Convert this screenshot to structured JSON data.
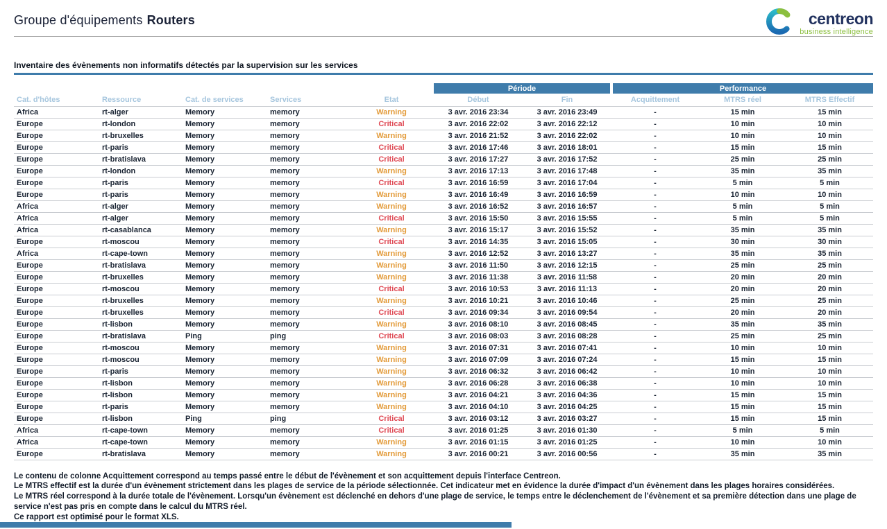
{
  "header": {
    "title_prefix": "Groupe d'équipements",
    "title_name": "Routers",
    "logo": {
      "brand": "centreon",
      "tagline": "business intelligence"
    }
  },
  "report": {
    "section_title": "Inventaire des évènements non informatifs détectés par la supervision sur les services",
    "table": {
      "group_headers": [
        {
          "label": "Période",
          "span": 2
        },
        {
          "label": "Performance",
          "span": 3
        }
      ],
      "columns": [
        "Cat. d'hôtes",
        "Ressource",
        "Cat. de services",
        "Services",
        "Etat",
        "Début",
        "Fin",
        "Acquittement",
        "MTRS réel",
        "MTRS Effectif"
      ],
      "rows": [
        [
          "Africa",
          "rt-alger",
          "Memory",
          "memory",
          "Warning",
          "3 avr. 2016 23:34",
          "3 avr. 2016 23:49",
          "-",
          "15 min",
          "15 min"
        ],
        [
          "Europe",
          "rt-london",
          "Memory",
          "memory",
          "Critical",
          "3 avr. 2016 22:02",
          "3 avr. 2016 22:12",
          "-",
          "10 min",
          "10 min"
        ],
        [
          "Europe",
          "rt-bruxelles",
          "Memory",
          "memory",
          "Warning",
          "3 avr. 2016 21:52",
          "3 avr. 2016 22:02",
          "-",
          "10 min",
          "10 min"
        ],
        [
          "Europe",
          "rt-paris",
          "Memory",
          "memory",
          "Critical",
          "3 avr. 2016 17:46",
          "3 avr. 2016 18:01",
          "-",
          "15 min",
          "15 min"
        ],
        [
          "Europe",
          "rt-bratislava",
          "Memory",
          "memory",
          "Critical",
          "3 avr. 2016 17:27",
          "3 avr. 2016 17:52",
          "-",
          "25 min",
          "25 min"
        ],
        [
          "Europe",
          "rt-london",
          "Memory",
          "memory",
          "Warning",
          "3 avr. 2016 17:13",
          "3 avr. 2016 17:48",
          "-",
          "35 min",
          "35 min"
        ],
        [
          "Europe",
          "rt-paris",
          "Memory",
          "memory",
          "Critical",
          "3 avr. 2016 16:59",
          "3 avr. 2016 17:04",
          "-",
          "5 min",
          "5 min"
        ],
        [
          "Europe",
          "rt-paris",
          "Memory",
          "memory",
          "Warning",
          "3 avr. 2016 16:49",
          "3 avr. 2016 16:59",
          "-",
          "10 min",
          "10 min"
        ],
        [
          "Africa",
          "rt-alger",
          "Memory",
          "memory",
          "Warning",
          "3 avr. 2016 16:52",
          "3 avr. 2016 16:57",
          "-",
          "5 min",
          "5 min"
        ],
        [
          "Africa",
          "rt-alger",
          "Memory",
          "memory",
          "Critical",
          "3 avr. 2016 15:50",
          "3 avr. 2016 15:55",
          "-",
          "5 min",
          "5 min"
        ],
        [
          "Africa",
          "rt-casablanca",
          "Memory",
          "memory",
          "Warning",
          "3 avr. 2016 15:17",
          "3 avr. 2016 15:52",
          "-",
          "35 min",
          "35 min"
        ],
        [
          "Europe",
          "rt-moscou",
          "Memory",
          "memory",
          "Critical",
          "3 avr. 2016 14:35",
          "3 avr. 2016 15:05",
          "-",
          "30 min",
          "30 min"
        ],
        [
          "Africa",
          "rt-cape-town",
          "Memory",
          "memory",
          "Warning",
          "3 avr. 2016 12:52",
          "3 avr. 2016 13:27",
          "-",
          "35 min",
          "35 min"
        ],
        [
          "Europe",
          "rt-bratislava",
          "Memory",
          "memory",
          "Warning",
          "3 avr. 2016 11:50",
          "3 avr. 2016 12:15",
          "-",
          "25 min",
          "25 min"
        ],
        [
          "Europe",
          "rt-bruxelles",
          "Memory",
          "memory",
          "Warning",
          "3 avr. 2016 11:38",
          "3 avr. 2016 11:58",
          "-",
          "20 min",
          "20 min"
        ],
        [
          "Europe",
          "rt-moscou",
          "Memory",
          "memory",
          "Critical",
          "3 avr. 2016 10:53",
          "3 avr. 2016 11:13",
          "-",
          "20 min",
          "20 min"
        ],
        [
          "Europe",
          "rt-bruxelles",
          "Memory",
          "memory",
          "Warning",
          "3 avr. 2016 10:21",
          "3 avr. 2016 10:46",
          "-",
          "25 min",
          "25 min"
        ],
        [
          "Europe",
          "rt-bruxelles",
          "Memory",
          "memory",
          "Critical",
          "3 avr. 2016 09:34",
          "3 avr. 2016 09:54",
          "-",
          "20 min",
          "20 min"
        ],
        [
          "Europe",
          "rt-lisbon",
          "Memory",
          "memory",
          "Warning",
          "3 avr. 2016 08:10",
          "3 avr. 2016 08:45",
          "-",
          "35 min",
          "35 min"
        ],
        [
          "Europe",
          "rt-bratislava",
          "Ping",
          "ping",
          "Critical",
          "3 avr. 2016 08:03",
          "3 avr. 2016 08:28",
          "-",
          "25 min",
          "25 min"
        ],
        [
          "Europe",
          "rt-moscou",
          "Memory",
          "memory",
          "Warning",
          "3 avr. 2016 07:31",
          "3 avr. 2016 07:41",
          "-",
          "10 min",
          "10 min"
        ],
        [
          "Europe",
          "rt-moscou",
          "Memory",
          "memory",
          "Warning",
          "3 avr. 2016 07:09",
          "3 avr. 2016 07:24",
          "-",
          "15 min",
          "15 min"
        ],
        [
          "Europe",
          "rt-paris",
          "Memory",
          "memory",
          "Warning",
          "3 avr. 2016 06:32",
          "3 avr. 2016 06:42",
          "-",
          "10 min",
          "10 min"
        ],
        [
          "Europe",
          "rt-lisbon",
          "Memory",
          "memory",
          "Warning",
          "3 avr. 2016 06:28",
          "3 avr. 2016 06:38",
          "-",
          "10 min",
          "10 min"
        ],
        [
          "Europe",
          "rt-lisbon",
          "Memory",
          "memory",
          "Warning",
          "3 avr. 2016 04:21",
          "3 avr. 2016 04:36",
          "-",
          "15 min",
          "15 min"
        ],
        [
          "Europe",
          "rt-paris",
          "Memory",
          "memory",
          "Warning",
          "3 avr. 2016 04:10",
          "3 avr. 2016 04:25",
          "-",
          "15 min",
          "15 min"
        ],
        [
          "Europe",
          "rt-lisbon",
          "Ping",
          "ping",
          "Critical",
          "3 avr. 2016 03:12",
          "3 avr. 2016 03:27",
          "-",
          "15 min",
          "15 min"
        ],
        [
          "Africa",
          "rt-cape-town",
          "Memory",
          "memory",
          "Critical",
          "3 avr. 2016 01:25",
          "3 avr. 2016 01:30",
          "-",
          "5 min",
          "5 min"
        ],
        [
          "Africa",
          "rt-cape-town",
          "Memory",
          "memory",
          "Warning",
          "3 avr. 2016 01:15",
          "3 avr. 2016 01:25",
          "-",
          "10 min",
          "10 min"
        ],
        [
          "Europe",
          "rt-bratislava",
          "Memory",
          "memory",
          "Warning",
          "3 avr. 2016 00:21",
          "3 avr. 2016 00:56",
          "-",
          "35 min",
          "35 min"
        ]
      ]
    },
    "footnotes": [
      "Le contenu de colonne Acquittement correspond au temps passé entre le début de l'évènement et son acquittement depuis l'interface Centreon.",
      "Le MTRS effectif est la durée d'un évènement strictement dans les plages de service de la période sélectionnée. Cet indicateur met en évidence la durée d'impact d'un évènement dans les plages horaires considérées.",
      "Le MTRS réel correspond à la durée totale de l'évènement. Lorsqu'un évènement est déclenché en dehors d'une plage de service, le temps entre le déclenchement de l'évènement et sa première détection dans une plage de service n'est pas pris en compte dans le calcul du MTRS réel.",
      "Ce rapport est optimisé pour le format XLS."
    ]
  },
  "colors": {
    "accent": "#3f7cab",
    "warning": "#e39b3a",
    "critical": "#df4a55",
    "column_header_text": "#a6c6de",
    "logo_brand": "#22325f",
    "logo_green": "#8cbf3f"
  }
}
